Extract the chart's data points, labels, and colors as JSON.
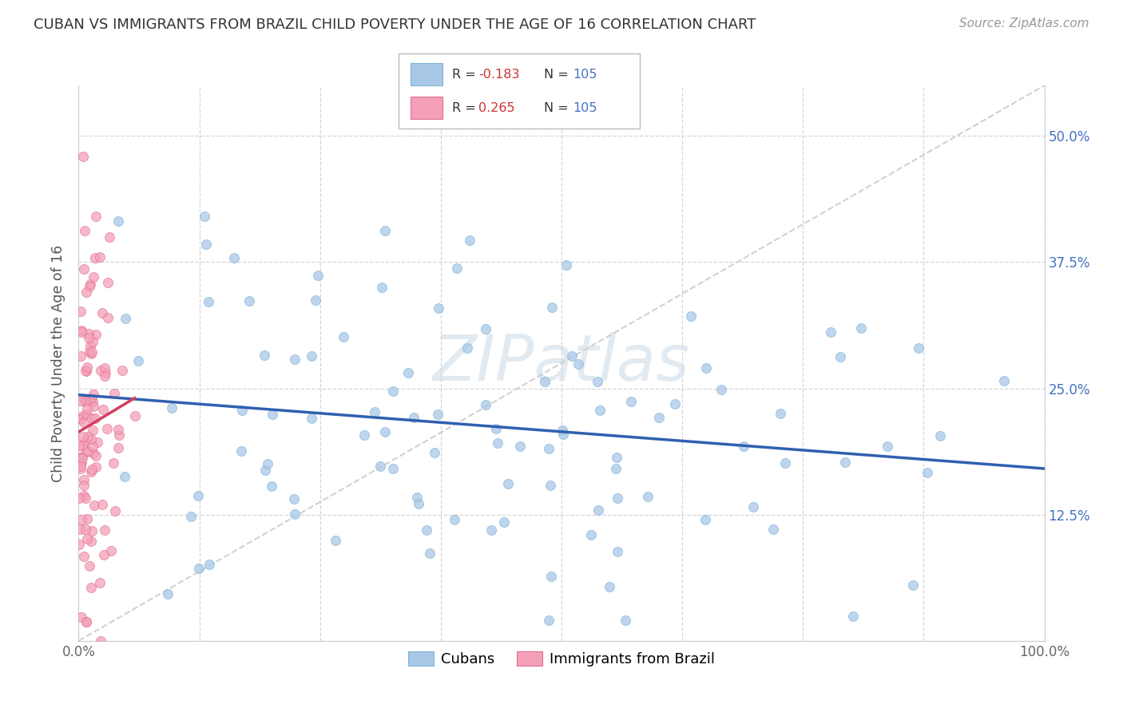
{
  "title": "CUBAN VS IMMIGRANTS FROM BRAZIL CHILD POVERTY UNDER THE AGE OF 16 CORRELATION CHART",
  "source": "Source: ZipAtlas.com",
  "ylabel": "Child Poverty Under the Age of 16",
  "xlim": [
    0.0,
    1.0
  ],
  "ylim": [
    0.0,
    0.55
  ],
  "xticks": [
    0.0,
    0.125,
    0.25,
    0.375,
    0.5,
    0.625,
    0.75,
    0.875,
    1.0
  ],
  "xticklabels": [
    "0.0%",
    "",
    "",
    "",
    "",
    "",
    "",
    "",
    "100.0%"
  ],
  "yticks": [
    0.0,
    0.125,
    0.25,
    0.375,
    0.5
  ],
  "yticklabels": [
    "",
    "12.5%",
    "25.0%",
    "37.5%",
    "50.0%"
  ],
  "cubans_color": "#a8c8e8",
  "cubans_edge": "#7fb3d3",
  "cubans_line": "#3060b0",
  "brazil_color": "#f4a0b8",
  "brazil_edge": "#e07090",
  "brazil_line": "#d04060",
  "background_color": "#ffffff",
  "grid_color": "#cccccc",
  "R_cubans": -0.183,
  "N_cubans": 105,
  "R_brazil": 0.265,
  "N_brazil": 105,
  "watermark_color": "#d0dce8",
  "diag_color": "#cccccc"
}
